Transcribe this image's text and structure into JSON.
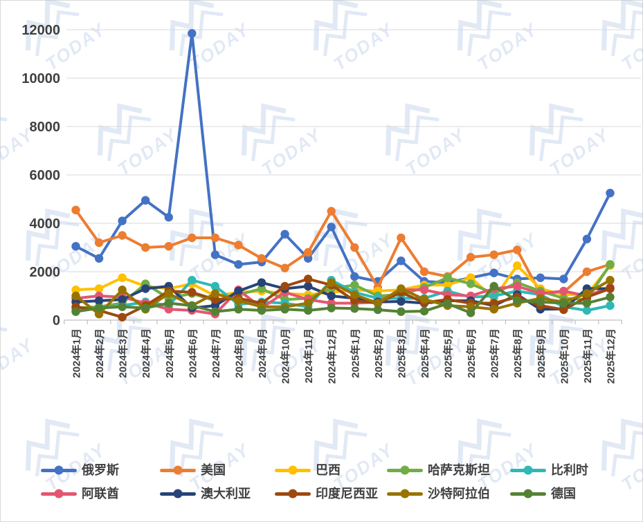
{
  "page": {
    "background": "#ffffff",
    "border_color": "#d9d9d9"
  },
  "watermark": {
    "text": "TODAY",
    "color": "#9db9e0"
  },
  "axes": {
    "y_tick_labels": [
      "0",
      "2000",
      "4000",
      "6000",
      "8000",
      "10000",
      "12000"
    ],
    "label_color": "#404040",
    "gridline_color": "#d9d9d9",
    "axisline_color": "#bfbfbf"
  },
  "chart_data": {
    "type": "line",
    "title": "",
    "xlabel": "",
    "ylabel": "",
    "ylim": [
      0,
      12000
    ],
    "ytick_step": 2000,
    "yticks": [
      0,
      2000,
      4000,
      6000,
      8000,
      10000,
      12000
    ],
    "grid": "horizontal",
    "legend_position": "bottom",
    "x_labels_rotated": true,
    "categories": [
      "2024年1月",
      "2024年2月",
      "2024年3月",
      "2024年4月",
      "2024年5月",
      "2024年6月",
      "2024年7月",
      "2024年8月",
      "2024年9月",
      "2024年10月",
      "2024年11月",
      "2024年12月",
      "2025年1月",
      "2025年2月",
      "2025年3月",
      "2025年4月",
      "2025年5月",
      "2025年6月",
      "2025年7月",
      "2025年8月",
      "2025年9月",
      "2025年10月",
      "2025年11月",
      "2025年12月"
    ],
    "series": [
      {
        "name": "俄罗斯",
        "color": "#4472C4",
        "values": [
          3050,
          2550,
          4100,
          4950,
          4250,
          11850,
          2700,
          2300,
          2400,
          3550,
          2550,
          3850,
          1800,
          1600,
          2450,
          1600,
          1550,
          1750,
          1950,
          1700,
          1750,
          1700,
          3350,
          5250
        ]
      },
      {
        "name": "美国",
        "color": "#ED7D31",
        "values": [
          4550,
          3200,
          3500,
          3000,
          3050,
          3400,
          3400,
          3100,
          2550,
          2150,
          2800,
          4500,
          3000,
          1350,
          3400,
          2000,
          1800,
          2600,
          2700,
          2900,
          1100,
          1150,
          2000,
          2300
        ]
      },
      {
        "name": "巴西",
        "color": "#FFC000",
        "values": [
          1250,
          1300,
          1750,
          1400,
          1300,
          1500,
          1000,
          1150,
          1200,
          1100,
          1050,
          1150,
          1250,
          1200,
          1250,
          1450,
          1450,
          1750,
          900,
          2250,
          1300,
          1050,
          1050,
          2250
        ]
      },
      {
        "name": "哈萨克斯坦",
        "color": "#70AD47",
        "values": [
          500,
          550,
          700,
          1500,
          900,
          1100,
          800,
          1050,
          1300,
          850,
          900,
          1300,
          1450,
          1000,
          1050,
          1350,
          1750,
          1500,
          1100,
          1550,
          1200,
          900,
          850,
          2300
        ]
      },
      {
        "name": "比利时",
        "color": "#2EB8B8",
        "values": [
          400,
          500,
          600,
          750,
          600,
          1650,
          1400,
          650,
          750,
          700,
          550,
          1650,
          1150,
          900,
          900,
          900,
          1200,
          950,
          1000,
          1200,
          1050,
          550,
          400,
          600
        ]
      },
      {
        "name": "阿联酋",
        "color": "#E4566F",
        "values": [
          900,
          1000,
          950,
          700,
          450,
          400,
          250,
          1250,
          500,
          1150,
          850,
          700,
          700,
          750,
          1250,
          1250,
          1050,
          1000,
          1300,
          1400,
          1100,
          1200,
          1000,
          1350
        ]
      },
      {
        "name": "澳大利亚",
        "color": "#264478",
        "values": [
          750,
          800,
          850,
          1300,
          1400,
          500,
          600,
          1200,
          1550,
          1300,
          1400,
          1000,
          900,
          750,
          770,
          700,
          800,
          800,
          600,
          1050,
          450,
          460,
          1300,
          1300
        ]
      },
      {
        "name": "印度尼西亚",
        "color": "#9E480E",
        "values": [
          550,
          400,
          120,
          600,
          1200,
          1150,
          850,
          900,
          700,
          1400,
          1700,
          1450,
          800,
          700,
          1150,
          720,
          850,
          700,
          700,
          950,
          600,
          430,
          950,
          1300
        ]
      },
      {
        "name": "沙特阿拉伯",
        "color": "#997300",
        "values": [
          1000,
          250,
          1250,
          450,
          1100,
          600,
          1100,
          800,
          550,
          550,
          700,
          1550,
          1050,
          700,
          1300,
          860,
          600,
          550,
          450,
          700,
          900,
          750,
          1100,
          1650
        ]
      },
      {
        "name": "德国",
        "color": "#548235",
        "values": [
          350,
          500,
          550,
          500,
          700,
          600,
          350,
          450,
          400,
          450,
          400,
          500,
          480,
          430,
          350,
          370,
          680,
          300,
          1400,
          800,
          750,
          700,
          700,
          950
        ]
      }
    ]
  }
}
